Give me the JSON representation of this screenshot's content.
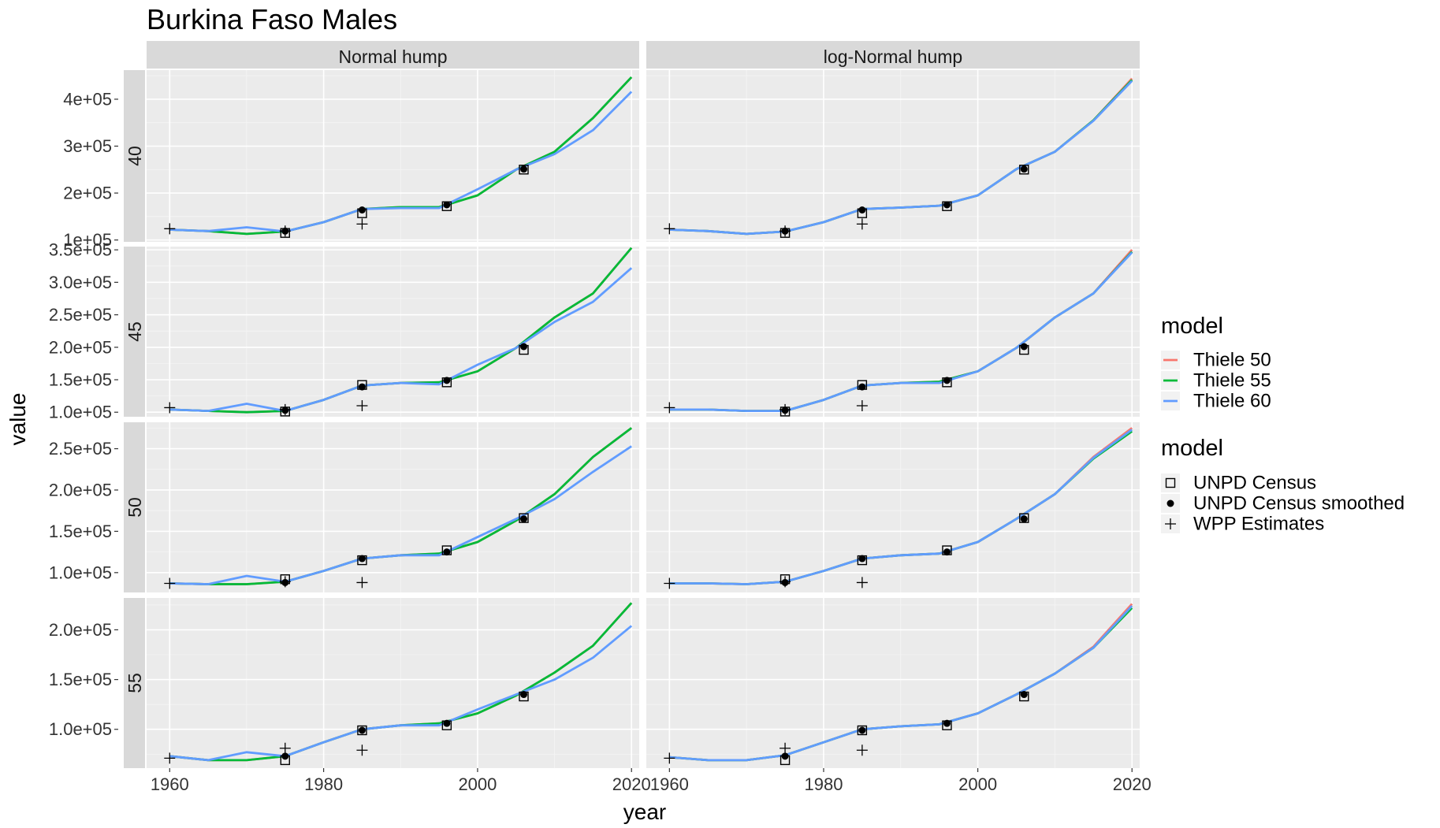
{
  "chart_data": {
    "type": "line",
    "title": "Burkina Faso Males",
    "xlabel": "year",
    "ylabel": "value",
    "xlim": [
      1957,
      2021
    ],
    "x_ticks": [
      1960,
      1980,
      2000,
      2020
    ],
    "grid": true,
    "facet_columns": [
      "Normal hump",
      "log-Normal hump"
    ],
    "x": [
      1960,
      1965,
      1970,
      1975,
      1980,
      1985,
      1990,
      1995,
      2000,
      2005,
      2010,
      2015,
      2020
    ],
    "colors": {
      "Thiele 50": "#F8766D",
      "Thiele 55": "#00BA38",
      "Thiele 60": "#619CFF"
    },
    "legend_placement": "right",
    "legends": [
      {
        "title": "model",
        "entries": [
          "Thiele 50",
          "Thiele 55",
          "Thiele 60"
        ]
      },
      {
        "title": "model",
        "entries": [
          "UNPD Census",
          "UNPD Census smoothed",
          "WPP Estimates"
        ]
      }
    ],
    "rows": [
      {
        "label": "40",
        "ylim": [
          96000,
          462000
        ],
        "y_ticks": [
          100000,
          200000,
          300000,
          400000
        ],
        "y_tick_labels": [
          "1e+05",
          "2e+05",
          "3e+05",
          "4e+05"
        ],
        "census": {
          "x": [
            1975,
            1985,
            1996,
            2006
          ],
          "values": [
            115000,
            157000,
            172000,
            250000
          ]
        },
        "census_smoothed": {
          "x": [
            1975,
            1985,
            1996,
            2006
          ],
          "values": [
            119000,
            164000,
            175000,
            251000
          ]
        },
        "wpp": {
          "x": [
            1960,
            1975,
            1985
          ],
          "values": [
            124000,
            119000,
            134000
          ]
        },
        "panels": [
          {
            "series": [
              {
                "name": "Thiele 50",
                "values": [
                  122000,
                  119000,
                  113000,
                  118000,
                  138000,
                  166000,
                  170000,
                  170000,
                  195000,
                  250000,
                  288000,
                  360000,
                  447000
                ]
              },
              {
                "name": "Thiele 55",
                "values": [
                  122000,
                  119000,
                  113000,
                  118000,
                  138000,
                  166000,
                  170000,
                  170000,
                  195000,
                  250000,
                  288000,
                  360000,
                  447000
                ]
              },
              {
                "name": "Thiele 60",
                "values": [
                  122000,
                  119000,
                  127000,
                  118000,
                  138000,
                  166000,
                  168000,
                  168000,
                  208000,
                  250000,
                  283000,
                  334000,
                  416000
                ]
              }
            ]
          },
          {
            "series": [
              {
                "name": "Thiele 50",
                "values": [
                  122000,
                  119000,
                  113000,
                  118000,
                  138000,
                  166000,
                  169000,
                  173000,
                  195000,
                  251000,
                  288000,
                  355000,
                  444000
                ]
              },
              {
                "name": "Thiele 55",
                "values": [
                  122000,
                  119000,
                  113000,
                  118000,
                  138000,
                  166000,
                  169000,
                  173000,
                  195000,
                  251000,
                  288000,
                  355000,
                  441000
                ]
              },
              {
                "name": "Thiele 60",
                "values": [
                  122000,
                  119000,
                  113000,
                  118000,
                  138000,
                  166000,
                  169000,
                  173000,
                  195000,
                  251000,
                  288000,
                  354000,
                  439000
                ]
              }
            ]
          }
        ]
      },
      {
        "label": "45",
        "ylim": [
          93000,
          355000
        ],
        "y_ticks": [
          100000,
          150000,
          200000,
          250000,
          300000,
          350000
        ],
        "y_tick_labels": [
          "1.0e+05",
          "1.5e+05",
          "2.0e+05",
          "2.5e+05",
          "3.0e+05",
          "3.5e+05"
        ],
        "census": {
          "x": [
            1975,
            1985,
            1996,
            2006
          ],
          "values": [
            101000,
            142000,
            146000,
            196000
          ]
        },
        "census_smoothed": {
          "x": [
            1975,
            1985,
            1996,
            2006
          ],
          "values": [
            103000,
            139000,
            149000,
            201000
          ]
        },
        "wpp": {
          "x": [
            1960,
            1975,
            1985
          ],
          "values": [
            107000,
            104000,
            110000
          ]
        },
        "panels": [
          {
            "series": [
              {
                "name": "Thiele 50",
                "values": [
                  104000,
                  102000,
                  100000,
                  102000,
                  119000,
                  141000,
                  145000,
                  146000,
                  163000,
                  199000,
                  246000,
                  283000,
                  353000
                ]
              },
              {
                "name": "Thiele 55",
                "values": [
                  104000,
                  102000,
                  100000,
                  102000,
                  119000,
                  141000,
                  145000,
                  146000,
                  163000,
                  199000,
                  246000,
                  283000,
                  353000
                ]
              },
              {
                "name": "Thiele 60",
                "values": [
                  104000,
                  102000,
                  113000,
                  102000,
                  119000,
                  141000,
                  145000,
                  143000,
                  173000,
                  199000,
                  239000,
                  270000,
                  322000
                ]
              }
            ]
          },
          {
            "series": [
              {
                "name": "Thiele 50",
                "values": [
                  104000,
                  104000,
                  102000,
                  102000,
                  119000,
                  141000,
                  145000,
                  147000,
                  163000,
                  199000,
                  246000,
                  283000,
                  350000
                ]
              },
              {
                "name": "Thiele 55",
                "values": [
                  104000,
                  104000,
                  102000,
                  102000,
                  119000,
                  141000,
                  145000,
                  147000,
                  163000,
                  199000,
                  246000,
                  283000,
                  347000
                ]
              },
              {
                "name": "Thiele 60",
                "values": [
                  104000,
                  104000,
                  102000,
                  102000,
                  119000,
                  141000,
                  145000,
                  145000,
                  163000,
                  199000,
                  246000,
                  283000,
                  346000
                ]
              }
            ]
          }
        ]
      },
      {
        "label": "50",
        "ylim": [
          76000,
          282000
        ],
        "y_ticks": [
          100000,
          150000,
          200000,
          250000
        ],
        "y_tick_labels": [
          "1.0e+05",
          "1.5e+05",
          "2.0e+05",
          "2.5e+05"
        ],
        "census": {
          "x": [
            1975,
            1985,
            1996,
            2006
          ],
          "values": [
            92000,
            115000,
            127000,
            166000
          ]
        },
        "census_smoothed": {
          "x": [
            1975,
            1985,
            1996,
            2006
          ],
          "values": [
            88000,
            117000,
            125000,
            165000
          ]
        },
        "wpp": {
          "x": [
            1960,
            1975,
            1985
          ],
          "values": [
            87000,
            89000,
            88000
          ]
        },
        "panels": [
          {
            "series": [
              {
                "name": "Thiele 50",
                "values": [
                  87000,
                  86000,
                  86000,
                  89000,
                  102000,
                  117000,
                  121000,
                  123000,
                  137000,
                  163000,
                  195000,
                  240000,
                  275000
                ]
              },
              {
                "name": "Thiele 55",
                "values": [
                  87000,
                  86000,
                  86000,
                  89000,
                  102000,
                  117000,
                  121000,
                  123000,
                  137000,
                  163000,
                  195000,
                  240000,
                  275000
                ]
              },
              {
                "name": "Thiele 60",
                "values": [
                  87000,
                  86000,
                  96000,
                  89000,
                  102000,
                  117000,
                  121000,
                  121000,
                  143000,
                  165000,
                  189000,
                  222000,
                  253000
                ]
              }
            ]
          },
          {
            "series": [
              {
                "name": "Thiele 50",
                "values": [
                  87000,
                  87000,
                  86000,
                  89000,
                  102000,
                  117000,
                  121000,
                  123000,
                  137000,
                  165000,
                  195000,
                  240000,
                  275000
                ]
              },
              {
                "name": "Thiele 55",
                "values": [
                  87000,
                  87000,
                  86000,
                  89000,
                  102000,
                  117000,
                  121000,
                  123000,
                  137000,
                  165000,
                  195000,
                  238000,
                  271000
                ]
              },
              {
                "name": "Thiele 60",
                "values": [
                  87000,
                  87000,
                  86000,
                  89000,
                  102000,
                  117000,
                  121000,
                  123000,
                  137000,
                  165000,
                  195000,
                  239000,
                  273000
                ]
              }
            ]
          }
        ]
      },
      {
        "label": "55",
        "ylim": [
          61000,
          232000
        ],
        "y_ticks": [
          100000,
          150000,
          200000
        ],
        "y_tick_labels": [
          "1.0e+05",
          "1.5e+05",
          "2.0e+05"
        ],
        "census": {
          "x": [
            1975,
            1985,
            1996,
            2006
          ],
          "values": [
            69000,
            99000,
            104000,
            133000
          ]
        },
        "census_smoothed": {
          "x": [
            1975,
            1985,
            1996,
            2006
          ],
          "values": [
            73000,
            99000,
            106000,
            135000
          ]
        },
        "wpp": {
          "x": [
            1960,
            1975,
            1985
          ],
          "values": [
            71000,
            81000,
            79000
          ]
        },
        "panels": [
          {
            "series": [
              {
                "name": "Thiele 50",
                "values": [
                  73000,
                  69000,
                  69000,
                  73000,
                  87000,
                  100000,
                  104000,
                  106000,
                  116000,
                  134000,
                  157000,
                  184000,
                  227000
                ]
              },
              {
                "name": "Thiele 55",
                "values": [
                  73000,
                  69000,
                  69000,
                  73000,
                  87000,
                  100000,
                  104000,
                  106000,
                  116000,
                  134000,
                  157000,
                  184000,
                  227000
                ]
              },
              {
                "name": "Thiele 60",
                "values": [
                  73000,
                  69000,
                  77000,
                  73000,
                  87000,
                  100000,
                  104000,
                  104000,
                  120000,
                  135000,
                  150000,
                  172000,
                  204000
                ]
              }
            ]
          },
          {
            "series": [
              {
                "name": "Thiele 50",
                "values": [
                  72000,
                  69000,
                  69000,
                  74000,
                  87000,
                  100000,
                  103000,
                  105000,
                  116000,
                  135000,
                  156000,
                  183000,
                  226000
                ]
              },
              {
                "name": "Thiele 55",
                "values": [
                  72000,
                  69000,
                  69000,
                  74000,
                  87000,
                  100000,
                  103000,
                  105000,
                  116000,
                  135000,
                  156000,
                  182000,
                  222000
                ]
              },
              {
                "name": "Thiele 60",
                "values": [
                  72000,
                  69000,
                  69000,
                  74000,
                  87000,
                  100000,
                  103000,
                  105000,
                  116000,
                  135000,
                  156000,
                  182000,
                  224000
                ]
              }
            ]
          }
        ]
      }
    ]
  }
}
